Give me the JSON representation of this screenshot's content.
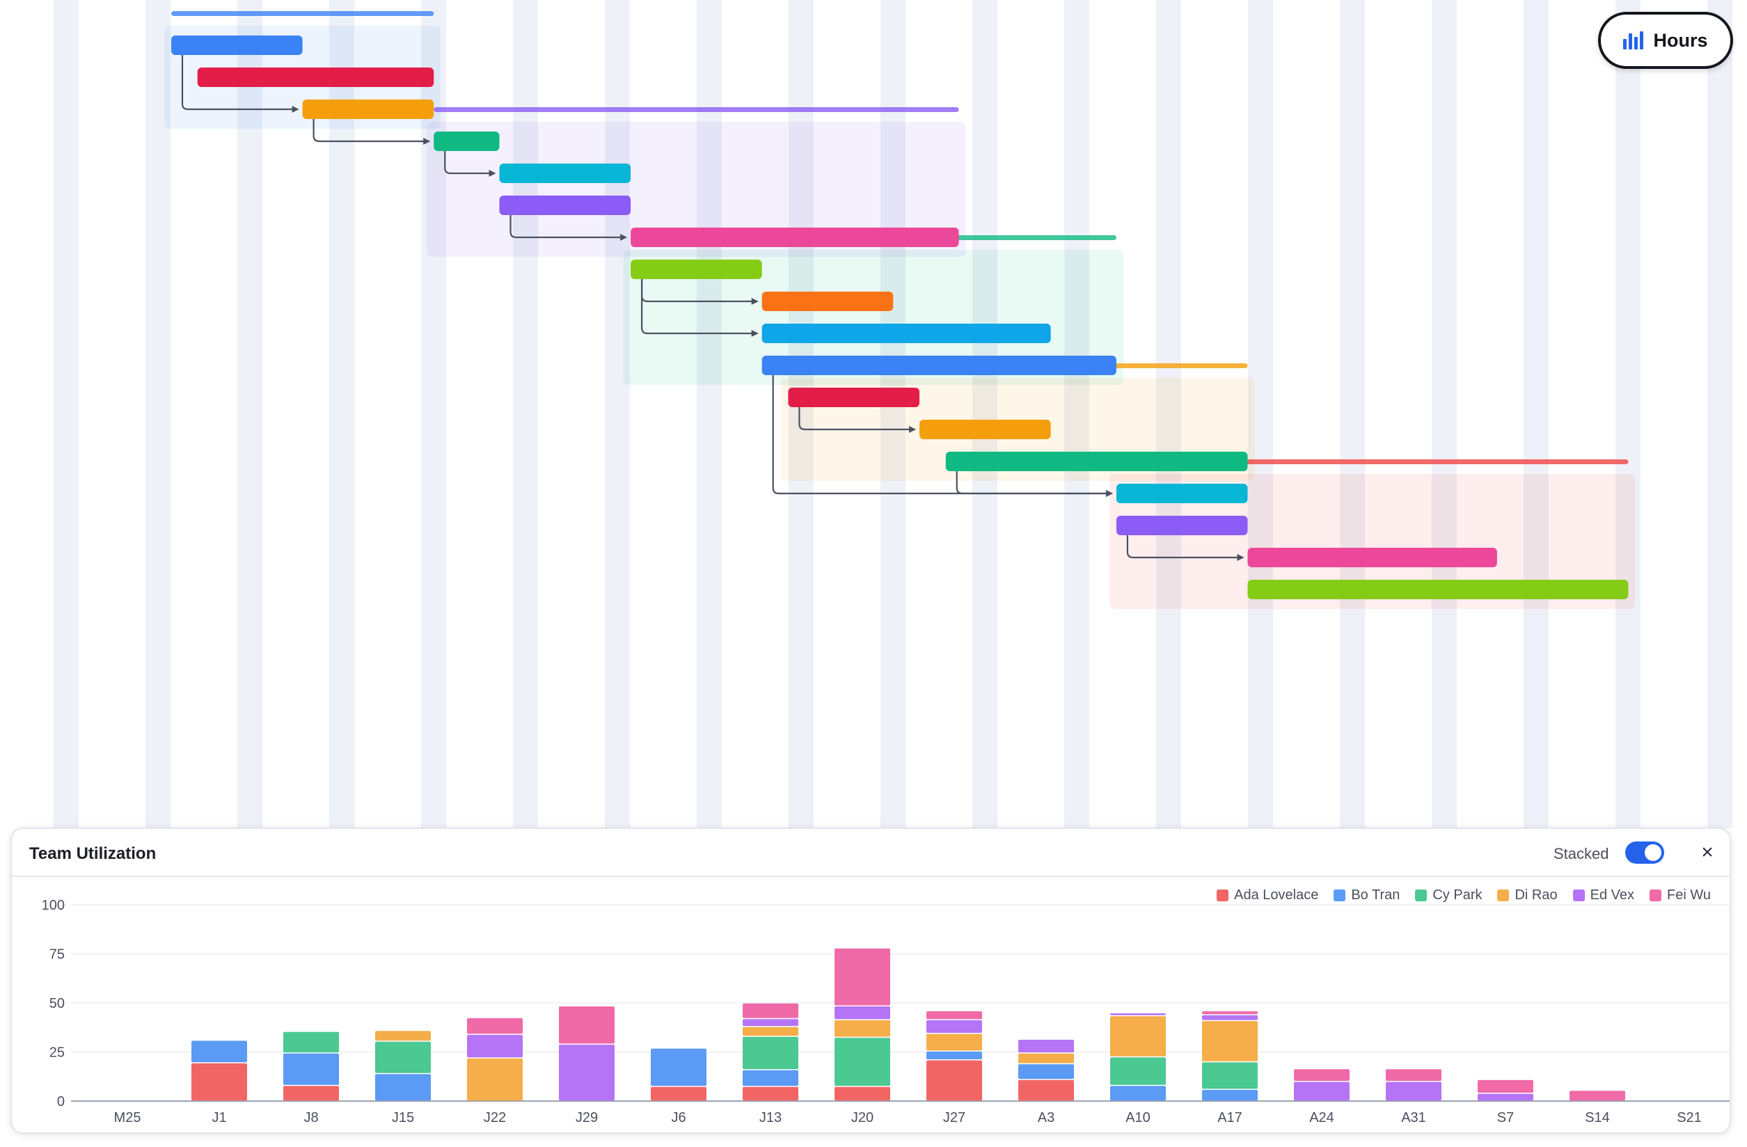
{
  "colors": {
    "red": "#e11d48",
    "blue": "#3b82f6",
    "amber": "#f59e0b",
    "green": "#10b981",
    "cyan": "#06b6d4",
    "violet": "#8b5cf6",
    "pink": "#ec4899",
    "lime": "#84cc16",
    "orange": "#f97316",
    "sky": "#0ea5e9"
  },
  "gantt": {
    "phases": [
      {
        "color": "#3b82f6",
        "tasks": [
          {
            "color": "blue",
            "start": 0,
            "end": 2
          },
          {
            "color": "red",
            "start": 0.4,
            "end": 4
          },
          {
            "color": "amber",
            "start": 2,
            "end": 4
          }
        ]
      },
      {
        "color": "#8b5cf6",
        "tasks": [
          {
            "color": "green",
            "start": 4,
            "end": 5
          },
          {
            "color": "cyan",
            "start": 5,
            "end": 7
          },
          {
            "color": "violet",
            "start": 5,
            "end": 7
          },
          {
            "color": "pink",
            "start": 7,
            "end": 12
          }
        ]
      },
      {
        "color": "#10b981",
        "tasks": [
          {
            "color": "lime",
            "start": 7,
            "end": 9
          },
          {
            "color": "orange",
            "start": 9,
            "end": 11
          },
          {
            "color": "sky",
            "start": 9,
            "end": 13.4
          },
          {
            "color": "blue",
            "start": 9,
            "end": 14.4
          }
        ]
      },
      {
        "color": "#f59e0b",
        "tasks": [
          {
            "color": "red",
            "start": 9.4,
            "end": 11.4
          },
          {
            "color": "amber",
            "start": 11.4,
            "end": 13.4
          },
          {
            "color": "green",
            "start": 11.8,
            "end": 16.4
          }
        ]
      },
      {
        "color": "#ef4444",
        "tasks": [
          {
            "color": "cyan",
            "start": 14.4,
            "end": 16.4
          },
          {
            "color": "violet",
            "start": 14.4,
            "end": 16.4
          },
          {
            "color": "pink",
            "start": 16.4,
            "end": 20.2
          },
          {
            "color": "lime",
            "start": 16.4,
            "end": 22.2
          }
        ]
      }
    ],
    "dependencies": [
      [
        0,
        0,
        0,
        2
      ],
      [
        0,
        2,
        1,
        0
      ],
      [
        1,
        0,
        1,
        1
      ],
      [
        1,
        2,
        1,
        3
      ],
      [
        2,
        0,
        2,
        1
      ],
      [
        2,
        0,
        2,
        2
      ],
      [
        3,
        0,
        3,
        1
      ],
      [
        2,
        3,
        4,
        0
      ],
      [
        3,
        2,
        4,
        0
      ],
      [
        4,
        1,
        4,
        2
      ]
    ]
  },
  "toolbar": {
    "hours_label": "Hours",
    "hours_icon": "bar-chart-icon"
  },
  "utilization": {
    "title": "Team Utilization",
    "stacked_label": "Stacked",
    "stacked_on": true,
    "close_icon": "close-icon",
    "close_glyph": "×"
  },
  "chart_data": {
    "type": "bar",
    "stacked": true,
    "title": "Team Utilization",
    "categories": [
      "M25",
      "J1",
      "J8",
      "J15",
      "J22",
      "J29",
      "J6",
      "J13",
      "J20",
      "J27",
      "A3",
      "A10",
      "A17",
      "A24",
      "A31",
      "S7",
      "S14",
      "S21"
    ],
    "yticks": [
      0,
      25,
      50,
      75,
      100
    ],
    "ylim": [
      0,
      100
    ],
    "grid": true,
    "legend_position": "top-right",
    "series": [
      {
        "name": "Ada Lovelace",
        "color": "#f26565",
        "values": [
          0,
          19.5,
          8,
          0,
          0,
          0,
          7.5,
          7.5,
          7.5,
          21,
          11,
          0,
          0,
          0,
          0,
          0,
          0,
          0
        ]
      },
      {
        "name": "Bo Tran",
        "color": "#5b9af5",
        "values": [
          0,
          11.5,
          16.5,
          14,
          0,
          0,
          19.5,
          8.5,
          0,
          4.5,
          8,
          8,
          6,
          0,
          0,
          0,
          0,
          0
        ]
      },
      {
        "name": "Cy Park",
        "color": "#4cc892",
        "values": [
          0,
          0,
          11,
          16.5,
          0,
          0,
          0,
          17,
          25,
          0,
          0,
          14.5,
          14,
          0,
          0,
          0,
          0,
          0
        ]
      },
      {
        "name": "Di Rao",
        "color": "#f5ae4a",
        "values": [
          0,
          0,
          0,
          5.5,
          22,
          0,
          0,
          5,
          9,
          9,
          5.5,
          21,
          21,
          0,
          0,
          0,
          0,
          0
        ]
      },
      {
        "name": "Ed Vex",
        "color": "#b574f5",
        "values": [
          0,
          0,
          0,
          0,
          12,
          29,
          0,
          4,
          7,
          7,
          7,
          1.5,
          3,
          10,
          10,
          4,
          0,
          0
        ]
      },
      {
        "name": "Fei Wu",
        "color": "#f06aa8",
        "values": [
          0,
          0,
          0,
          0,
          8.5,
          19.5,
          0,
          8,
          29.5,
          4.5,
          0,
          0,
          2,
          6.5,
          6.5,
          7,
          5.5,
          0
        ]
      }
    ]
  }
}
